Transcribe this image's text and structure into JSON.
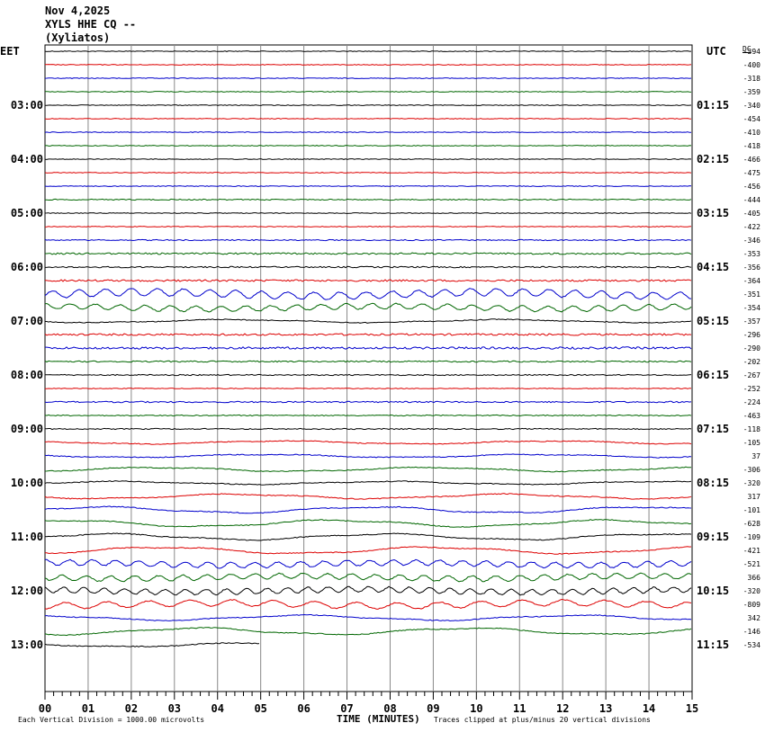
{
  "header": {
    "date": "Nov 4,2025",
    "station": "XYLS HHE CQ --",
    "location": "(Xyliatos)",
    "left_tz": "EET",
    "right_tz": "UTC",
    "dc_label": "DC"
  },
  "footer": {
    "scale_note": "Each Vertical Division = 1000.00 microvolts",
    "xaxis_title": "TIME (MINUTES)",
    "clip_note": "Traces clipped at plus/minus 20 vertical divisions"
  },
  "chart_data": {
    "type": "line",
    "title": "XYLS HHE CQ -- (Xyliatos) Nov 4,2025",
    "xlabel": "TIME (MINUTES)",
    "xlim": [
      0,
      15
    ],
    "x_ticks": [
      "00",
      "01",
      "02",
      "03",
      "04",
      "05",
      "06",
      "07",
      "08",
      "09",
      "10",
      "11",
      "12",
      "13",
      "14",
      "15"
    ],
    "trace_colors": [
      "#000000",
      "#dd0000",
      "#0000cc",
      "#006600"
    ],
    "grid": true,
    "left_hour_labels": [
      "03:00",
      "04:00",
      "05:00",
      "06:00",
      "07:00",
      "08:00",
      "09:00",
      "10:00",
      "11:00",
      "12:00",
      "13:00"
    ],
    "right_hour_labels": [
      "01:15",
      "02:15",
      "03:15",
      "04:15",
      "05:15",
      "06:15",
      "07:15",
      "08:15",
      "09:15",
      "10:15",
      "11:15"
    ],
    "dc_offsets": [
      "-394",
      "-400",
      "-318",
      "-359",
      "-340",
      "-454",
      "-410",
      "-418",
      "-466",
      "-475",
      "-456",
      "-444",
      "-405",
      "-422",
      "-346",
      "-353",
      "-356",
      "-364",
      "-351",
      "-354",
      "-357",
      "-296",
      "-290",
      "-202",
      "-267",
      "-252",
      "-224",
      "-463",
      "-118",
      "-105",
      "37",
      "-306",
      "-320",
      "317",
      "-101",
      "-628",
      "-109",
      "-421",
      "-521",
      "366",
      "-320",
      "-809",
      "342",
      "-146",
      "-534"
    ],
    "trace_amplitude_divisions": [
      0.3,
      0.3,
      0.3,
      0.3,
      0.3,
      0.3,
      0.3,
      0.3,
      0.3,
      0.3,
      0.3,
      0.4,
      0.3,
      0.3,
      0.4,
      0.6,
      0.5,
      0.7,
      4,
      3,
      1.2,
      0.7,
      0.8,
      0.5,
      0.4,
      0.3,
      0.5,
      0.4,
      0.4,
      1.2,
      1.2,
      1.6,
      1.2,
      1.8,
      2.4,
      2.6,
      2.4,
      2.6,
      3,
      3,
      3,
      3.4,
      2,
      2.6,
      1.6
    ],
    "last_trace_end_minute": 5
  }
}
